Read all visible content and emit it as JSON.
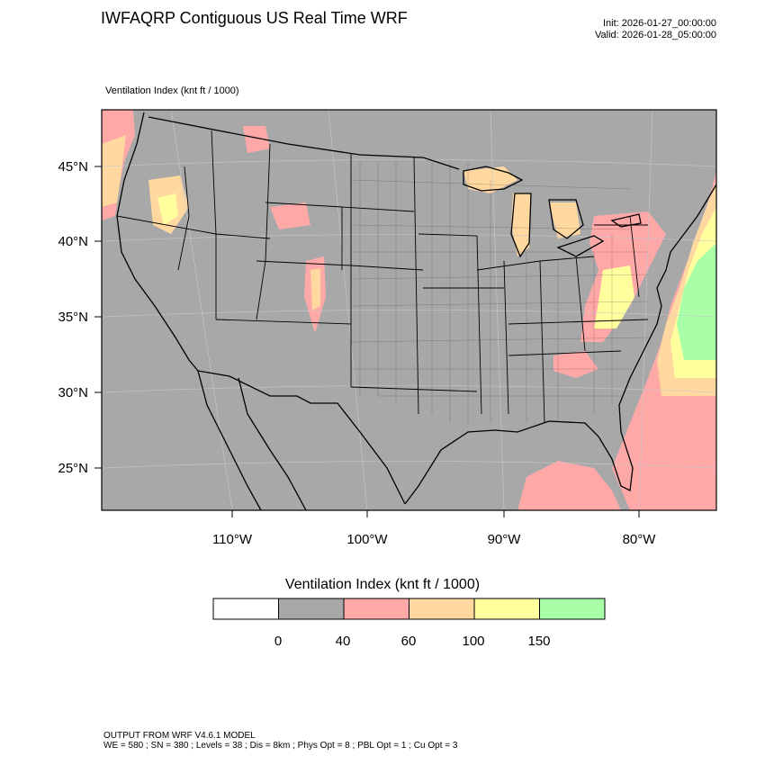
{
  "title": "IWFAQRP Contiguous US Real Time WRF",
  "init_line": "Init: 2026-01-27_00:00:00",
  "valid_line": "Valid: 2026-01-28_05:00:00",
  "field_label": "Ventilation Index   (knt ft / 1000)",
  "map": {
    "lat_ticks": [
      "45°N",
      "40°N",
      "35°N",
      "30°N",
      "25°N"
    ],
    "lon_ticks": [
      "110°W",
      "100°W",
      "90°W",
      "80°W"
    ],
    "background_color": "#a8a8a8",
    "border_color": "#000000"
  },
  "colorbar": {
    "title": "Ventilation Index  (knt ft / 1000)",
    "colors": [
      "#ffffff",
      "#a8a8a8",
      "#ffa8a8",
      "#ffd8a0",
      "#ffff9e",
      "#a8ffa8"
    ],
    "tick_labels": [
      "0",
      "40",
      "60",
      "100",
      "150"
    ]
  },
  "footer": {
    "line1": "OUTPUT FROM WRF V4.6.1 MODEL",
    "line2": "WE = 580 ; SN = 380 ; Levels = 38 ; Dis = 8km ; Phys Opt = 8 ; PBL Opt = 1 ; Cu Opt = 3"
  }
}
